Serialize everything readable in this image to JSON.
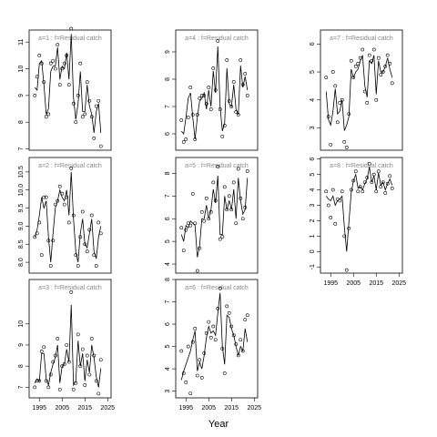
{
  "chart_data": [
    {
      "type": "line",
      "title": "a=1  :  f=Residual catch",
      "x": [
        1993,
        1994,
        1995,
        1996,
        1997,
        1998,
        1999,
        2000,
        2001,
        2002,
        2003,
        2004,
        2005,
        2006,
        2007,
        2008,
        2009,
        2010,
        2011,
        2012,
        2013,
        2014,
        2015,
        2016,
        2017,
        2018,
        2019,
        2020,
        2021,
        2022
      ],
      "xlim": [
        1990.5,
        2026.5
      ],
      "ylim": [
        6.95,
        11.45
      ],
      "yticks": [
        7,
        8,
        9,
        10,
        11
      ],
      "series": [
        {
          "mode": "points",
          "color": "#000000",
          "values": [
            9.0,
            9.7,
            10.5,
            10.2,
            9.5,
            8.2,
            8.3,
            10.2,
            10.3,
            10.0,
            10.9,
            9.4,
            10.0,
            10.2,
            10.5,
            9.4,
            11.5,
            8.7,
            8.0,
            9.0,
            10.2,
            8.2,
            8.3,
            9.5,
            8.8,
            8.2,
            7.4,
            8.6,
            8.8,
            7.1
          ]
        },
        {
          "mode": "line",
          "color": "#000000",
          "values": [
            9.3,
            9.2,
            10.2,
            10.3,
            9.4,
            8.3,
            8.5,
            9.9,
            10.1,
            10.1,
            10.8,
            9.6,
            10.1,
            10.0,
            10.6,
            9.6,
            11.3,
            8.9,
            8.1,
            8.7,
            9.9,
            8.4,
            8.4,
            9.4,
            8.6,
            8.3,
            7.6,
            8.4,
            8.7,
            7.6
          ]
        }
      ]
    },
    {
      "type": "line",
      "title": "a=2  :  f=Residual catch",
      "x": [
        1993,
        1994,
        1995,
        1996,
        1997,
        1998,
        1999,
        2000,
        2001,
        2002,
        2003,
        2004,
        2005,
        2006,
        2007,
        2008,
        2009,
        2010,
        2011,
        2012,
        2013,
        2014,
        2015,
        2016,
        2017,
        2018,
        2019,
        2020,
        2021,
        2022
      ],
      "xlim": [
        1990.5,
        2026.5
      ],
      "ylim": [
        7.7,
        10.9
      ],
      "yticks": [
        {
          "value": 8,
          "label": "8.0"
        },
        8.5,
        {
          "value": 9,
          "label": "9.0"
        },
        9.5,
        {
          "value": 10,
          "label": "10.0"
        },
        10.5
      ],
      "series": [
        {
          "mode": "points",
          "color": "#000000",
          "values": [
            8.7,
            8.8,
            9.1,
            8.2,
            9.8,
            9.8,
            8.6,
            7.9,
            8.6,
            9.6,
            9.7,
            10.1,
            9.9,
            9.6,
            9.8,
            9.1,
            10.6,
            9.3,
            8.2,
            7.9,
            8.7,
            9.4,
            8.5,
            8.3,
            8.9,
            9.3,
            8.2,
            7.9,
            9.1,
            8.8
          ]
        },
        {
          "mode": "line",
          "color": "#000000",
          "values": [
            8.7,
            8.9,
            9.3,
            9.8,
            9.5,
            9.7,
            8.7,
            8.0,
            8.8,
            9.5,
            9.7,
            10.0,
            9.8,
            9.7,
            10.0,
            9.3,
            10.5,
            9.2,
            8.3,
            8.0,
            8.8,
            9.2,
            8.5,
            8.4,
            8.8,
            9.2,
            8.3,
            8.1,
            8.7,
            9.0
          ]
        }
      ]
    },
    {
      "type": "line",
      "title": "a=3  :  f=Residual catch",
      "x": [
        1993,
        1994,
        1995,
        1996,
        1997,
        1998,
        1999,
        2000,
        2001,
        2002,
        2003,
        2004,
        2005,
        2006,
        2007,
        2008,
        2009,
        2010,
        2011,
        2012,
        2013,
        2014,
        2015,
        2016,
        2017,
        2018,
        2019,
        2020,
        2021,
        2022
      ],
      "xlim": [
        1990.5,
        2026.5
      ],
      "xticks": [
        1995,
        2005,
        2015,
        2025
      ],
      "ylim": [
        6.5,
        12.1
      ],
      "yticks": [
        7,
        8,
        9,
        10
      ],
      "series": [
        {
          "mode": "points",
          "color": "#000000",
          "values": [
            7.0,
            7.3,
            7.3,
            8.7,
            8.9,
            7.3,
            7.0,
            7.6,
            8.2,
            8.5,
            9.3,
            6.9,
            8.0,
            8.1,
            9.0,
            8.2,
            11.5,
            6.9,
            7.2,
            9.5,
            8.0,
            8.8,
            7.1,
            8.5,
            7.6,
            9.3,
            8.5,
            7.3,
            6.7,
            8.3
          ]
        },
        {
          "mode": "line",
          "color": "#000000",
          "values": [
            7.2,
            7.4,
            7.3,
            8.6,
            8.6,
            7.4,
            7.1,
            7.7,
            8.1,
            8.4,
            9.0,
            7.2,
            8.0,
            8.1,
            8.8,
            8.2,
            10.9,
            7.1,
            7.3,
            9.2,
            8.0,
            8.6,
            7.3,
            8.3,
            7.7,
            9.0,
            8.4,
            7.5,
            7.0,
            7.9
          ]
        }
      ]
    },
    {
      "type": "line",
      "title": "a=4  :  f=Residual catch",
      "x": [
        1993,
        1994,
        1995,
        1996,
        1997,
        1998,
        1999,
        2000,
        2001,
        2002,
        2003,
        2004,
        2005,
        2006,
        2007,
        2008,
        2009,
        2010,
        2011,
        2012,
        2013,
        2014,
        2015,
        2016,
        2017,
        2018,
        2019,
        2020,
        2021,
        2022
      ],
      "xlim": [
        1990.5,
        2026.5
      ],
      "ylim": [
        5.4,
        9.8
      ],
      "yticks": [
        6,
        7,
        8,
        9
      ],
      "series": [
        {
          "mode": "points",
          "color": "#000000",
          "values": [
            6.5,
            5.7,
            5.8,
            6.6,
            7.7,
            6.7,
            5.8,
            6.7,
            7.3,
            7.4,
            7.4,
            7.1,
            7.7,
            6.9,
            8.4,
            7.6,
            9.4,
            6.9,
            5.9,
            6.3,
            8.7,
            7.2,
            7.0,
            7.9,
            6.8,
            6.7,
            8.7,
            7.8,
            8.2,
            7.4
          ]
        },
        {
          "mode": "line",
          "color": "#000000",
          "values": [
            6.1,
            6.0,
            6.6,
            7.3,
            7.5,
            6.6,
            5.8,
            6.6,
            7.2,
            7.3,
            7.5,
            6.9,
            7.6,
            7.0,
            8.3,
            7.5,
            9.2,
            7.0,
            6.1,
            6.4,
            8.4,
            7.1,
            7.0,
            7.8,
            6.9,
            6.7,
            8.5,
            7.7,
            8.1,
            7.6
          ]
        }
      ]
    },
    {
      "type": "line",
      "title": "a=5  :  f=Residual catch",
      "x": [
        1993,
        1994,
        1995,
        1996,
        1997,
        1998,
        1999,
        2000,
        2001,
        2002,
        2003,
        2004,
        2005,
        2006,
        2007,
        2008,
        2009,
        2010,
        2011,
        2012,
        2013,
        2014,
        2015,
        2016,
        2017,
        2018,
        2019,
        2020,
        2021,
        2022
      ],
      "xlim": [
        1990.5,
        2026.5
      ],
      "ylim": [
        3.6,
        8.7
      ],
      "yticks": [
        4,
        5,
        6,
        7,
        8
      ],
      "series": [
        {
          "mode": "points",
          "color": "#000000",
          "values": [
            5.6,
            4.6,
            5.5,
            5.8,
            5.7,
            7.1,
            5.8,
            3.7,
            4.7,
            6.3,
            5.9,
            6.9,
            6.0,
            6.3,
            7.6,
            6.8,
            8.3,
            5.1,
            5.2,
            7.4,
            6.4,
            7.0,
            6.4,
            7.6,
            5.8,
            8.2,
            6.9,
            6.0,
            6.5,
            8.1
          ]
        },
        {
          "mode": "line",
          "color": "#000000",
          "values": [
            5.3,
            5.0,
            5.7,
            5.6,
            5.9,
            5.8,
            5.7,
            4.3,
            4.8,
            6.0,
            6.0,
            6.6,
            6.0,
            6.4,
            7.3,
            6.7,
            7.9,
            5.3,
            5.3,
            7.0,
            6.4,
            6.8,
            6.4,
            7.3,
            6.0,
            7.8,
            6.8,
            6.2,
            6.4,
            7.8
          ]
        }
      ]
    },
    {
      "type": "line",
      "title": "a=6  :  f=Residual catch",
      "x": [
        1993,
        1994,
        1995,
        1996,
        1997,
        1998,
        1999,
        2000,
        2001,
        2002,
        2003,
        2004,
        2005,
        2006,
        2007,
        2008,
        2009,
        2010,
        2011,
        2012,
        2013,
        2014,
        2015,
        2016,
        2017,
        2018,
        2019,
        2020,
        2021,
        2022
      ],
      "xlim": [
        1990.5,
        2026.5
      ],
      "xticks": [
        1995,
        2005,
        2015,
        2025
      ],
      "ylim": [
        2.7,
        8.0
      ],
      "yticks": [
        3,
        4,
        5,
        6,
        7,
        8
      ],
      "series": [
        {
          "mode": "points",
          "color": "#000000",
          "values": [
            4.8,
            3.8,
            3.4,
            5.0,
            2.9,
            5.2,
            5.8,
            3.7,
            4.4,
            3.6,
            4.7,
            5.6,
            6.1,
            5.4,
            5.9,
            5.3,
            6.7,
            7.6,
            4.9,
            3.8,
            6.8,
            6.5,
            5.9,
            5.5,
            5.1,
            4.6,
            5.3,
            4.8,
            6.2,
            6.4
          ]
        },
        {
          "mode": "line",
          "color": "#000000",
          "values": [
            3.5,
            3.9,
            4.2,
            4.5,
            4.8,
            5.3,
            5.7,
            3.9,
            4.3,
            4.0,
            4.6,
            5.4,
            5.9,
            5.6,
            5.7,
            5.5,
            6.5,
            7.4,
            5.0,
            4.2,
            6.4,
            6.3,
            5.8,
            5.5,
            5.0,
            4.6,
            5.0,
            4.8,
            5.8,
            5.2
          ]
        }
      ]
    },
    {
      "type": "line",
      "title": "a=7  :  f=Residual catch",
      "x": [
        1993,
        1994,
        1995,
        1996,
        1997,
        1998,
        1999,
        2000,
        2001,
        2002,
        2003,
        2004,
        2005,
        2006,
        2007,
        2008,
        2009,
        2010,
        2011,
        2012,
        2013,
        2014,
        2015,
        2016,
        2017,
        2018,
        2019,
        2020,
        2021,
        2022
      ],
      "xlim": [
        1990.5,
        2026.5
      ],
      "ylim": [
        2.2,
        6.5
      ],
      "yticks": [
        3,
        4,
        5,
        6
      ],
      "series": [
        {
          "mode": "points",
          "color": "#000000",
          "values": [
            4.8,
            3.4,
            2.4,
            5.0,
            4.5,
            3.2,
            3.9,
            4.0,
            2.5,
            2.3,
            3.5,
            5.4,
            4.8,
            5.2,
            5.3,
            5.5,
            5.8,
            4.3,
            3.9,
            5.6,
            5.4,
            5.8,
            4.0,
            5.5,
            4.9,
            5.0,
            5.2,
            5.6,
            5.3,
            4.6
          ]
        },
        {
          "mode": "line",
          "color": "#000000",
          "values": [
            4.3,
            3.3,
            3.1,
            3.6,
            4.4,
            3.5,
            3.6,
            4.0,
            2.9,
            3.1,
            3.4,
            5.1,
            4.8,
            5.0,
            5.1,
            5.4,
            5.6,
            4.5,
            4.1,
            5.4,
            5.3,
            5.6,
            4.2,
            5.4,
            5.0,
            5.0,
            5.2,
            5.5,
            5.1,
            4.8
          ]
        }
      ]
    },
    {
      "type": "line",
      "title": "a=8  :  f=Residual catch",
      "x": [
        1993,
        1994,
        1995,
        1996,
        1997,
        1998,
        1999,
        2000,
        2001,
        2002,
        2003,
        2004,
        2005,
        2006,
        2007,
        2008,
        2009,
        2010,
        2011,
        2012,
        2013,
        2014,
        2015,
        2016,
        2017,
        2018,
        2019,
        2020,
        2021,
        2022
      ],
      "xlim": [
        1990.5,
        2026.5
      ],
      "xticks": [
        1995,
        2005,
        2015,
        2025
      ],
      "ylim": [
        -1.4,
        6.1
      ],
      "yticks": [
        -1,
        0,
        1,
        2,
        3,
        4,
        5,
        6
      ],
      "series": [
        {
          "mode": "points",
          "color": "#000000",
          "values": [
            3.9,
            3.0,
            2.2,
            4.0,
            1.8,
            3.4,
            3.3,
            3.9,
            1.0,
            -1.2,
            1.5,
            4.0,
            4.6,
            5.2,
            3.9,
            4.2,
            3.9,
            4.5,
            4.8,
            5.7,
            4.5,
            5.0,
            3.9,
            5.2,
            4.2,
            4.5,
            3.8,
            4.4,
            4.9,
            4.1
          ]
        },
        {
          "mode": "line",
          "color": "#000000",
          "values": [
            3.6,
            3.4,
            3.3,
            3.6,
            3.0,
            3.3,
            3.4,
            3.6,
            1.6,
            0.0,
            1.9,
            3.8,
            4.6,
            5.0,
            4.1,
            4.2,
            4.0,
            4.4,
            4.7,
            5.5,
            4.5,
            4.9,
            4.0,
            5.1,
            4.3,
            4.5,
            4.0,
            4.4,
            4.7,
            4.3
          ]
        }
      ]
    }
  ],
  "xlabel": "Year"
}
